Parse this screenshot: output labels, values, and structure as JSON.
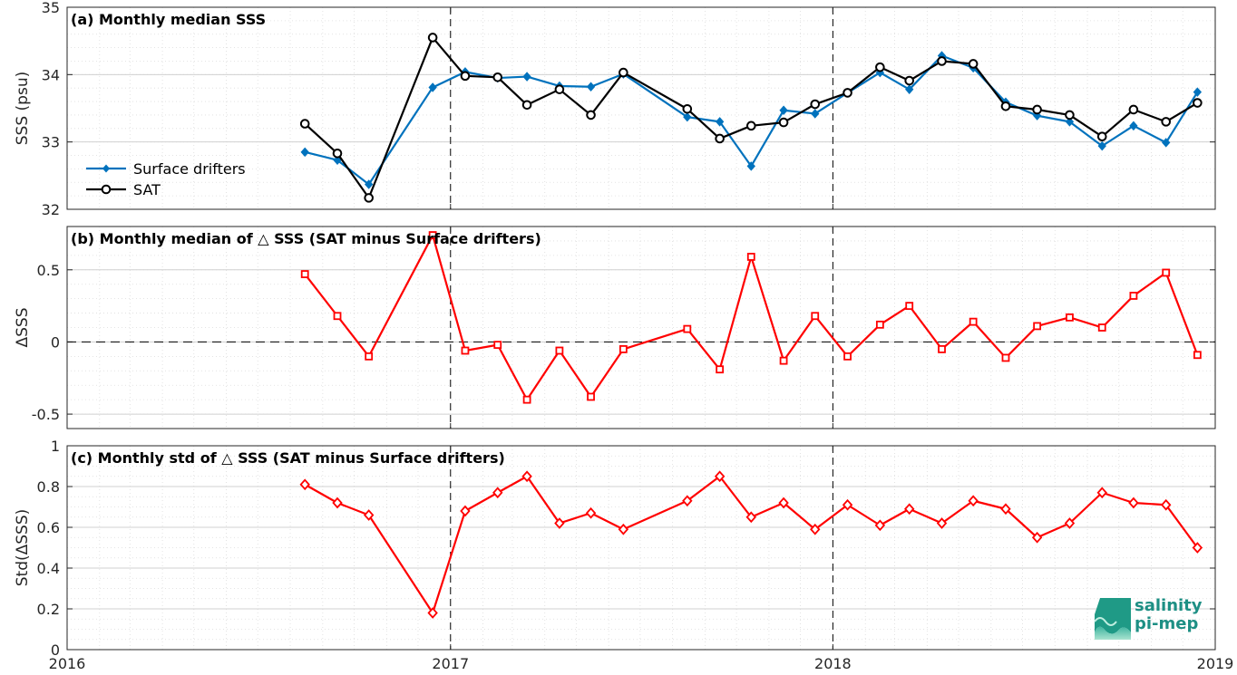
{
  "chart_data": [
    {
      "type": "line",
      "title": "(a) Monthly median SSS",
      "ylabel": "SSS (psu)",
      "ylim": [
        32,
        35
      ],
      "yticks": [
        32,
        33,
        34,
        35
      ],
      "ytick_labels": [
        "32",
        "33",
        "34",
        "35"
      ],
      "legend": "left",
      "grid": true,
      "series": [
        {
          "name": "Surface drifters",
          "color": "#0072bd",
          "marker": "diamond",
          "x": [
            "2016-08-15",
            "2016-09-15",
            "2016-10-15",
            "2016-12-15",
            "2017-01-15",
            "2017-02-15",
            "2017-03-15",
            "2017-04-15",
            "2017-05-15",
            "2017-06-15",
            "2017-08-15",
            "2017-09-15",
            "2017-10-15",
            "2017-11-15",
            "2017-12-15",
            "2018-01-15",
            "2018-02-15",
            "2018-03-15",
            "2018-04-15",
            "2018-05-15",
            "2018-06-15",
            "2018-07-15",
            "2018-08-15",
            "2018-09-15",
            "2018-10-15",
            "2018-11-15",
            "2018-12-15"
          ],
          "y": [
            32.85,
            32.73,
            32.37,
            33.81,
            34.04,
            33.95,
            33.97,
            33.83,
            33.82,
            34.01,
            33.37,
            33.3,
            32.64,
            33.47,
            33.42,
            33.73,
            34.03,
            33.78,
            34.28,
            34.1,
            33.59,
            33.39,
            33.3,
            32.94,
            33.24,
            32.99,
            33.74
          ]
        },
        {
          "name": "SAT",
          "color": "#000000",
          "marker": "circle",
          "x": [
            "2016-08-15",
            "2016-09-15",
            "2016-10-15",
            "2016-12-15",
            "2017-01-15",
            "2017-02-15",
            "2017-03-15",
            "2017-04-15",
            "2017-05-15",
            "2017-06-15",
            "2017-08-15",
            "2017-09-15",
            "2017-10-15",
            "2017-11-15",
            "2017-12-15",
            "2018-01-15",
            "2018-02-15",
            "2018-03-15",
            "2018-04-15",
            "2018-05-15",
            "2018-06-15",
            "2018-07-15",
            "2018-08-15",
            "2018-09-15",
            "2018-10-15",
            "2018-11-15",
            "2018-12-15"
          ],
          "y": [
            33.27,
            32.83,
            32.17,
            34.55,
            33.98,
            33.96,
            33.55,
            33.78,
            33.4,
            34.03,
            33.49,
            33.05,
            33.24,
            33.29,
            33.56,
            33.73,
            34.11,
            33.91,
            34.2,
            34.16,
            33.53,
            33.48,
            33.4,
            33.08,
            33.48,
            33.3,
            33.58
          ]
        }
      ]
    },
    {
      "type": "line",
      "title": "(b) Monthly median of △ SSS (SAT minus Surface drifters)",
      "ylabel": "ΔSSS",
      "ylim": [
        -0.6,
        0.8
      ],
      "yticks": [
        -0.5,
        0,
        0.5
      ],
      "ytick_labels": [
        "-0.5",
        "0",
        "0.5"
      ],
      "zero_line": true,
      "grid": true,
      "series": [
        {
          "color": "#ff0000",
          "marker": "square",
          "x": [
            "2016-08-15",
            "2016-09-15",
            "2016-10-15",
            "2016-12-15",
            "2017-01-15",
            "2017-02-15",
            "2017-03-15",
            "2017-04-15",
            "2017-05-15",
            "2017-06-15",
            "2017-08-15",
            "2017-09-15",
            "2017-10-15",
            "2017-11-15",
            "2017-12-15",
            "2018-01-15",
            "2018-02-15",
            "2018-03-15",
            "2018-04-15",
            "2018-05-15",
            "2018-06-15",
            "2018-07-15",
            "2018-08-15",
            "2018-09-15",
            "2018-10-15",
            "2018-11-15",
            "2018-12-15"
          ],
          "y": [
            0.47,
            0.18,
            -0.1,
            0.74,
            -0.06,
            -0.02,
            -0.4,
            -0.06,
            -0.38,
            -0.05,
            0.09,
            -0.19,
            0.59,
            -0.13,
            0.18,
            -0.1,
            0.12,
            0.25,
            -0.05,
            0.14,
            -0.11,
            0.11,
            0.17,
            0.1,
            0.32,
            0.48,
            -0.09
          ]
        }
      ]
    },
    {
      "type": "line",
      "title": "(c) Monthly std of △ SSS (SAT minus Surface drifters)",
      "ylabel": "Std(ΔSSS)",
      "ylim": [
        0,
        1
      ],
      "yticks": [
        0,
        0.2,
        0.4,
        0.6,
        0.8,
        1
      ],
      "ytick_labels": [
        "0",
        "0.2",
        "0.4",
        "0.6",
        "0.8",
        "1"
      ],
      "xticks": [
        "2016",
        "2017",
        "2018",
        "2019"
      ],
      "grid": true,
      "series": [
        {
          "color": "#ff0000",
          "marker": "diamond",
          "x": [
            "2016-08-15",
            "2016-09-15",
            "2016-10-15",
            "2016-12-15",
            "2017-01-15",
            "2017-02-15",
            "2017-03-15",
            "2017-04-15",
            "2017-05-15",
            "2017-06-15",
            "2017-08-15",
            "2017-09-15",
            "2017-10-15",
            "2017-11-15",
            "2017-12-15",
            "2018-01-15",
            "2018-02-15",
            "2018-03-15",
            "2018-04-15",
            "2018-05-15",
            "2018-06-15",
            "2018-07-15",
            "2018-08-15",
            "2018-09-15",
            "2018-10-15",
            "2018-11-15",
            "2018-12-15"
          ],
          "y": [
            0.81,
            0.72,
            0.66,
            0.18,
            0.68,
            0.77,
            0.85,
            0.62,
            0.67,
            0.59,
            0.73,
            0.85,
            0.65,
            0.72,
            0.59,
            0.71,
            0.61,
            0.69,
            0.62,
            0.73,
            0.69,
            0.55,
            0.62,
            0.77,
            0.72,
            0.71,
            0.5
          ]
        }
      ]
    }
  ],
  "logo": {
    "line1": "salinity",
    "line2": "pi-mep",
    "color": "#1d8f84"
  }
}
